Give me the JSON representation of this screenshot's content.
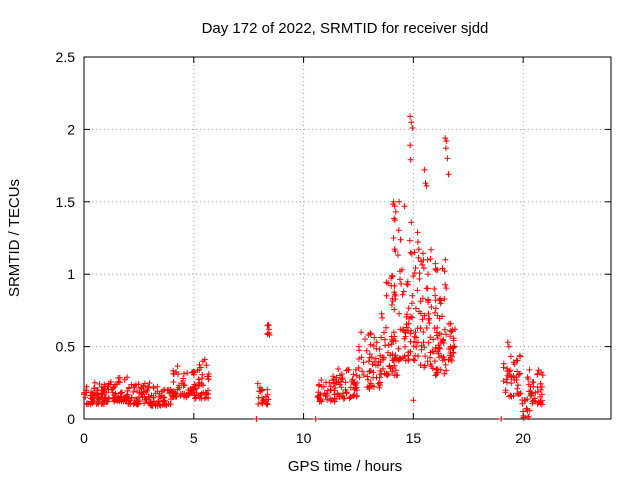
{
  "chart_data": {
    "type": "scatter",
    "title": "Day 172 of 2022, SRMTID for receiver sjdd",
    "xlabel": "GPS time / hours",
    "ylabel": "SRMTID / TECUs",
    "xlim": [
      0,
      24
    ],
    "ylim": [
      0,
      2.5
    ],
    "xticks": [
      0,
      5,
      10,
      15,
      20
    ],
    "yticks": [
      0,
      0.5,
      1,
      1.5,
      2,
      2.5
    ],
    "xtick_labels": [
      "0",
      "5",
      "10",
      "15",
      "20"
    ],
    "ytick_labels": [
      "0",
      "0.5",
      "1",
      "1.5",
      "2",
      "2.5"
    ],
    "grid": true,
    "marker": "+",
    "series": [
      {
        "name": "SRMTID",
        "color": "#ff0000",
        "clusters": [
          {
            "x_start": 0.0,
            "x_end": 1.0,
            "y_base": 0.1,
            "y_spread": 0.15,
            "points": 60
          },
          {
            "x_start": 1.0,
            "x_end": 2.0,
            "y_base": 0.12,
            "y_spread": 0.18,
            "points": 60
          },
          {
            "x_start": 2.0,
            "x_end": 3.0,
            "y_base": 0.1,
            "y_spread": 0.15,
            "points": 55
          },
          {
            "x_start": 3.0,
            "x_end": 4.0,
            "y_base": 0.09,
            "y_spread": 0.14,
            "points": 50
          },
          {
            "x_start": 4.0,
            "x_end": 5.0,
            "y_base": 0.15,
            "y_spread": 0.22,
            "points": 55
          },
          {
            "x_start": 5.0,
            "x_end": 5.7,
            "y_base": 0.14,
            "y_spread": 0.26,
            "points": 45
          },
          {
            "x_start": 7.9,
            "x_end": 8.4,
            "y_base": 0.1,
            "y_spread": 0.15,
            "points": 25
          },
          {
            "x_start": 8.35,
            "x_end": 8.45,
            "y_base": 0.57,
            "y_spread": 0.09,
            "points": 5
          },
          {
            "x_start": 10.6,
            "x_end": 11.5,
            "y_base": 0.12,
            "y_spread": 0.18,
            "points": 45
          },
          {
            "x_start": 11.5,
            "x_end": 12.5,
            "y_base": 0.14,
            "y_spread": 0.22,
            "points": 50
          },
          {
            "x_start": 12.5,
            "x_end": 13.5,
            "y_base": 0.2,
            "y_spread": 0.4,
            "points": 55
          },
          {
            "x_start": 13.5,
            "x_end": 14.3,
            "y_base": 0.3,
            "y_spread": 0.7,
            "points": 50
          },
          {
            "x_start": 14.0,
            "x_end": 14.6,
            "y_base": 0.4,
            "y_spread": 1.1,
            "points": 40
          },
          {
            "x_start": 14.6,
            "x_end": 15.2,
            "y_base": 0.4,
            "y_spread": 1.0,
            "points": 50
          },
          {
            "x_start": 15.2,
            "x_end": 16.0,
            "y_base": 0.35,
            "y_spread": 0.9,
            "points": 60
          },
          {
            "x_start": 16.0,
            "x_end": 16.6,
            "y_base": 0.3,
            "y_spread": 0.8,
            "points": 55
          },
          {
            "x_start": 16.6,
            "x_end": 16.9,
            "y_base": 0.4,
            "y_spread": 0.3,
            "points": 20
          },
          {
            "x_start": 19.1,
            "x_end": 19.9,
            "y_base": 0.15,
            "y_spread": 0.3,
            "points": 40
          },
          {
            "x_start": 19.9,
            "x_end": 20.3,
            "y_base": 0.0,
            "y_spread": 0.15,
            "points": 15
          },
          {
            "x_start": 20.2,
            "x_end": 20.9,
            "y_base": 0.1,
            "y_spread": 0.25,
            "points": 40
          }
        ],
        "peaks": [
          {
            "x": 14.85,
            "y": 2.09
          },
          {
            "x": 14.9,
            "y": 2.05
          },
          {
            "x": 14.95,
            "y": 2.01
          },
          {
            "x": 14.85,
            "y": 1.89
          },
          {
            "x": 14.88,
            "y": 1.79
          },
          {
            "x": 16.45,
            "y": 1.94
          },
          {
            "x": 16.5,
            "y": 1.92
          },
          {
            "x": 16.48,
            "y": 1.87
          },
          {
            "x": 16.55,
            "y": 1.8
          },
          {
            "x": 16.6,
            "y": 1.69
          },
          {
            "x": 15.5,
            "y": 1.72
          },
          {
            "x": 15.55,
            "y": 1.63
          },
          {
            "x": 15.6,
            "y": 1.61
          },
          {
            "x": 14.1,
            "y": 1.5
          },
          {
            "x": 14.15,
            "y": 1.47
          },
          {
            "x": 14.2,
            "y": 1.43
          },
          {
            "x": 14.35,
            "y": 1.5
          },
          {
            "x": 14.1,
            "y": 1.25
          },
          {
            "x": 8.4,
            "y": 0.65
          },
          {
            "x": 8.42,
            "y": 0.62
          },
          {
            "x": 8.45,
            "y": 0.58
          },
          {
            "x": 19.3,
            "y": 0.53
          },
          {
            "x": 19.35,
            "y": 0.5
          },
          {
            "x": 5.5,
            "y": 0.41
          },
          {
            "x": 16.9,
            "y": 0.62
          },
          {
            "x": 15.0,
            "y": 0.13
          },
          {
            "x": 7.85,
            "y": 0.0
          },
          {
            "x": 10.55,
            "y": 0.0
          },
          {
            "x": 19.0,
            "y": 0.0
          }
        ]
      }
    ]
  }
}
